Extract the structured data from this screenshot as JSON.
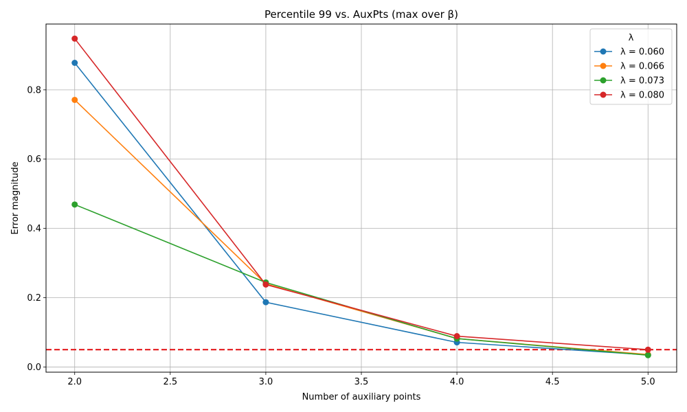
{
  "chart_data": {
    "type": "line",
    "title": "Percentile 99 vs. AuxPts (max over β)",
    "xlabel": "Number of auxiliary points",
    "ylabel": "Error magnitude",
    "xlim": [
      1.85,
      5.15
    ],
    "ylim": [
      -0.015,
      0.99
    ],
    "x_ticks": [
      "2.0",
      "2.5",
      "3.0",
      "3.5",
      "4.0",
      "4.5",
      "5.0"
    ],
    "y_ticks": [
      "0.0",
      "0.2",
      "0.4",
      "0.6",
      "0.8"
    ],
    "grid": true,
    "legend": {
      "title": "λ",
      "placement": "top-right"
    },
    "x": [
      2.0,
      3.0,
      4.0,
      5.0
    ],
    "series": [
      {
        "name": "λ = 0.060",
        "color": "#1f77b4",
        "values": [
          0.878,
          0.187,
          0.071,
          0.035
        ]
      },
      {
        "name": "λ = 0.066",
        "color": "#ff7f0e",
        "values": [
          0.771,
          0.24,
          0.082,
          0.036
        ]
      },
      {
        "name": "λ = 0.073",
        "color": "#2ca02c",
        "values": [
          0.469,
          0.244,
          0.082,
          0.034
        ]
      },
      {
        "name": "λ = 0.080",
        "color": "#d62728",
        "values": [
          0.948,
          0.238,
          0.089,
          0.05
        ]
      }
    ],
    "reference_line": {
      "y": 0.05,
      "color": "#e31a1c",
      "style": "dashed"
    }
  }
}
